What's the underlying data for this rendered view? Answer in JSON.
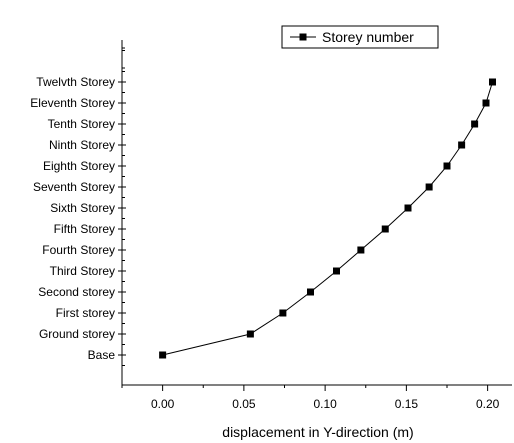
{
  "chart_data": {
    "type": "line",
    "title": "",
    "xlabel": "displacement in Y-direction (m)",
    "ylabel": "",
    "xlim": [
      -0.025,
      0.215
    ],
    "x_ticks": [
      0.0,
      0.05,
      0.1,
      0.15,
      0.2
    ],
    "x_tick_labels": [
      "0.00",
      "0.05",
      "0.10",
      "0.15",
      "0.20"
    ],
    "categories": [
      "Base",
      "Ground storey",
      "First storey",
      "Second storey",
      "Third Storey",
      "Fourth Storey",
      "Fifth Storey",
      "Sixth Storey",
      "Seventh Storey",
      "Eighth Storey",
      "Ninth Storey",
      "Tenth Storey",
      "Eleventh Storey",
      "Twelvth Storey"
    ],
    "series": [
      {
        "name": "Storey number",
        "x": [
          0.0,
          0.054,
          0.074,
          0.091,
          0.107,
          0.122,
          0.137,
          0.151,
          0.164,
          0.175,
          0.184,
          0.192,
          0.199,
          0.203
        ],
        "y": [
          "Base",
          "Ground storey",
          "First storey",
          "Second storey",
          "Third Storey",
          "Fourth Storey",
          "Fifth Storey",
          "Sixth Storey",
          "Seventh Storey",
          "Eighth Storey",
          "Ninth Storey",
          "Tenth Storey",
          "Eleventh Storey",
          "Twelvth Storey"
        ],
        "marker": "square",
        "color": "#000000"
      }
    ],
    "legend": {
      "position": "top-right",
      "entries": [
        "Storey number"
      ]
    },
    "grid": false
  }
}
